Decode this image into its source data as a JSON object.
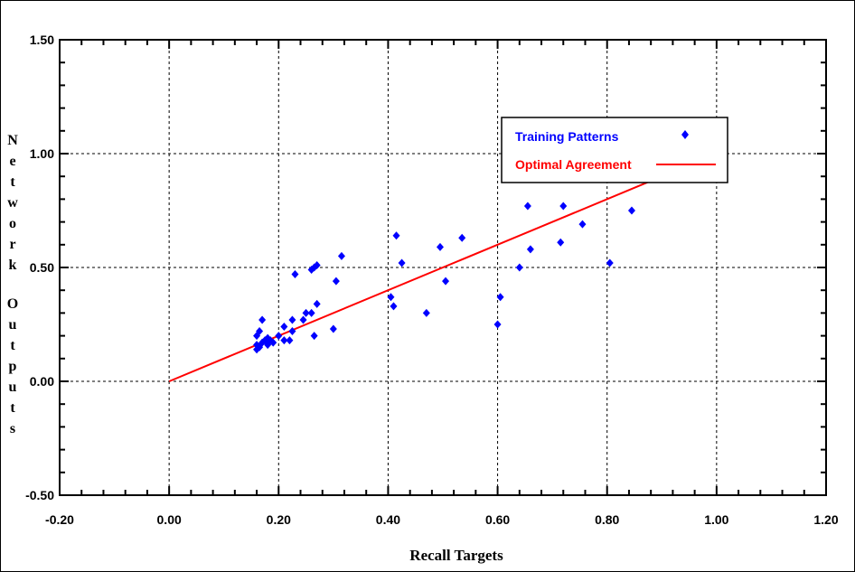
{
  "chart_data": {
    "type": "scatter",
    "title": "",
    "xlabel": "Recall Targets",
    "ylabel": "Network Outputs",
    "xlim": [
      -0.2,
      1.2
    ],
    "ylim": [
      -0.5,
      1.5
    ],
    "x_ticks": [
      "-0.20",
      "0.00",
      "0.20",
      "0.40",
      "0.60",
      "0.80",
      "1.00",
      "1.20"
    ],
    "y_ticks": [
      "-0.50",
      "0.00",
      "0.50",
      "1.00",
      "1.50"
    ],
    "grid": true,
    "legend_position": "top-right",
    "series": [
      {
        "name": "Training Patterns",
        "color": "#0000ff",
        "marker": "diamond",
        "x": [
          0.16,
          0.16,
          0.16,
          0.165,
          0.165,
          0.17,
          0.17,
          0.175,
          0.18,
          0.18,
          0.185,
          0.19,
          0.2,
          0.21,
          0.21,
          0.22,
          0.225,
          0.225,
          0.23,
          0.245,
          0.25,
          0.26,
          0.26,
          0.265,
          0.265,
          0.27,
          0.27,
          0.3,
          0.305,
          0.315,
          0.405,
          0.41,
          0.415,
          0.425,
          0.47,
          0.495,
          0.505,
          0.535,
          0.6,
          0.605,
          0.64,
          0.655,
          0.66,
          0.715,
          0.72,
          0.755,
          0.805,
          0.845
        ],
        "y": [
          0.14,
          0.16,
          0.2,
          0.15,
          0.22,
          0.17,
          0.27,
          0.18,
          0.16,
          0.19,
          0.18,
          0.17,
          0.2,
          0.18,
          0.24,
          0.18,
          0.22,
          0.27,
          0.47,
          0.27,
          0.3,
          0.3,
          0.49,
          0.2,
          0.5,
          0.34,
          0.51,
          0.23,
          0.44,
          0.55,
          0.37,
          0.33,
          0.64,
          0.52,
          0.3,
          0.59,
          0.44,
          0.63,
          0.25,
          0.37,
          0.5,
          0.77,
          0.58,
          0.61,
          0.77,
          0.69,
          0.52,
          0.75
        ]
      },
      {
        "name": "Optimal Agreement",
        "color": "#ff0000",
        "type": "line",
        "x": [
          0.0,
          0.883
        ],
        "y": [
          0.0,
          0.883
        ]
      }
    ]
  }
}
